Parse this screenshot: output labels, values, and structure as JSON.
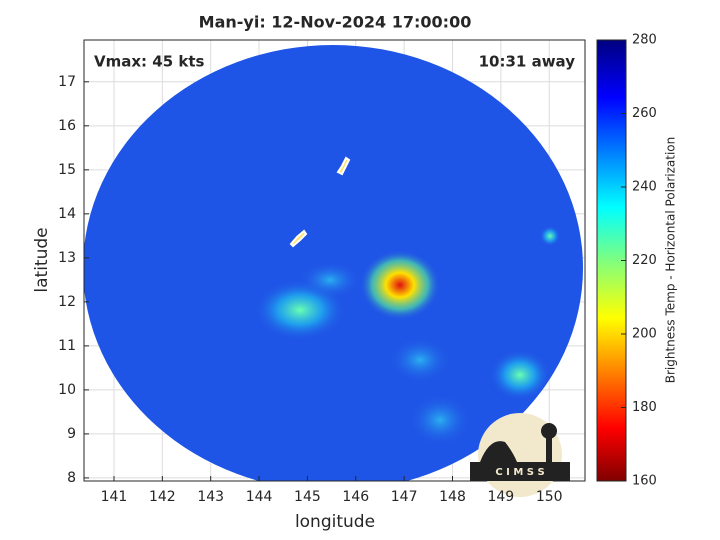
{
  "chart_data": {
    "type": "image-map",
    "title": "Man-yi: 12-Nov-2024 17:00:00",
    "annotations": [
      "Vmax: 45 kts",
      "10:31 away"
    ],
    "x_label": "longitude",
    "y_label": "latitude",
    "xlim": [
      140.38,
      150.74
    ],
    "xticks": [
      141,
      142,
      143,
      144,
      145,
      146,
      147,
      148,
      149,
      150
    ],
    "ylim": [
      7.93,
      17.95
    ],
    "yticks": [
      8,
      9,
      10,
      11,
      12,
      13,
      14,
      15,
      16,
      17
    ],
    "grid": true,
    "colorbar": {
      "label": "Brightness Temp - Horizontal Polarization",
      "lim": [
        160,
        280
      ],
      "ticks": [
        160,
        180,
        200,
        220,
        240,
        260,
        280
      ]
    },
    "logo_text": "C I M S S"
  }
}
